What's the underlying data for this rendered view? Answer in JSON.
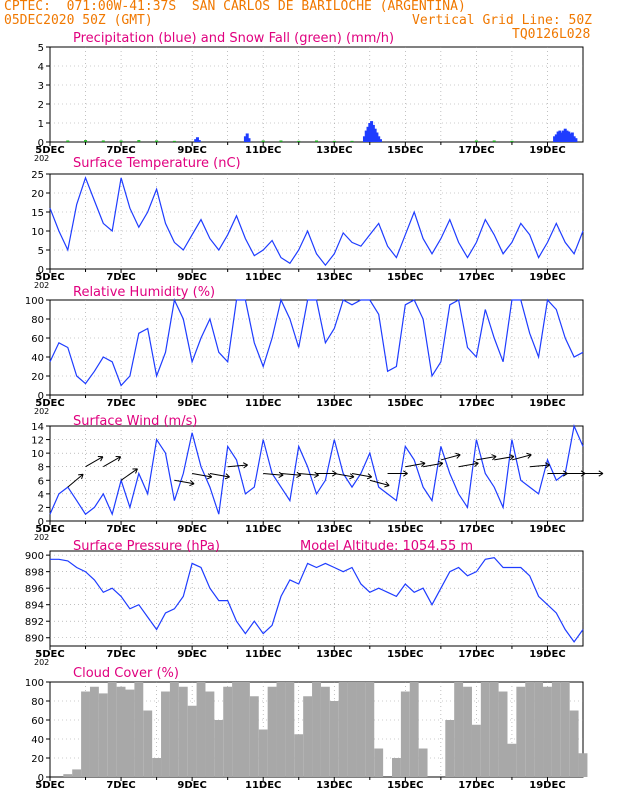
{
  "header": {
    "line1": "CPTEC:  071:00W-41:37S  SAN CARLOS DE BARILOCHE (ARGENTINA)",
    "line2_left": "05DEC2020 50Z (GMT)",
    "line2_right": "Vertical Grid Line: 50Z",
    "line3_right": "TQ0126L028"
  },
  "colors": {
    "header": "#f07800",
    "title": "#e0007f",
    "series": "#1e3cff",
    "snow": "#22aa22",
    "cloud": "#a8a8a8",
    "grid": "#999999"
  },
  "x_axis": {
    "day_labels": [
      "5DEC",
      "7DEC",
      "9DEC",
      "11DEC",
      "13DEC",
      "15DEC",
      "17DEC",
      "19DEC"
    ],
    "year_stub": "202",
    "start_day": 5,
    "end_day": 20
  },
  "chart_data": [
    {
      "type": "bar",
      "title": "Precipitation (blue) and Snow Fall (green) (mm/h)",
      "ylim": [
        0,
        5
      ],
      "yticks": [
        "0",
        "1",
        "2",
        "3",
        "4",
        "5"
      ],
      "series": [
        {
          "name": "Precipitation",
          "color": "#1e3cff",
          "x": [
            9.1,
            9.15,
            9.2,
            10.5,
            10.55,
            10.6,
            13.85,
            13.9,
            13.95,
            14.0,
            14.05,
            14.1,
            14.15,
            14.2,
            14.25,
            14.3,
            19.2,
            19.25,
            19.3,
            19.35,
            19.4,
            19.45,
            19.5,
            19.55,
            19.6,
            19.65,
            19.7,
            19.75,
            19.8
          ],
          "values": [
            0.15,
            0.25,
            0.1,
            0.3,
            0.45,
            0.2,
            0.3,
            0.6,
            0.8,
            1.0,
            1.1,
            0.9,
            0.7,
            0.5,
            0.3,
            0.15,
            0.3,
            0.4,
            0.55,
            0.6,
            0.5,
            0.6,
            0.7,
            0.6,
            0.55,
            0.45,
            0.5,
            0.3,
            0.2
          ]
        },
        {
          "name": "Snow Fall",
          "color": "#22aa22",
          "x": [
            5.5,
            6.0,
            6.5,
            7.0,
            7.5,
            8.0,
            8.5,
            11.0,
            11.5,
            12.0,
            12.5,
            13.0,
            13.5,
            17.0,
            17.5,
            18.0
          ],
          "values": [
            0.08,
            0.1,
            0.08,
            0.08,
            0.1,
            0.08,
            0.06,
            0.08,
            0.08,
            0.06,
            0.08,
            0.06,
            0.06,
            0.08,
            0.08,
            0.06
          ]
        }
      ]
    },
    {
      "type": "line",
      "title": "Surface Temperature (nC)",
      "ylim": [
        0,
        25
      ],
      "yticks": [
        "0",
        "5",
        "10",
        "15",
        "20",
        "25"
      ],
      "x": [
        5.0,
        5.25,
        5.5,
        5.75,
        6.0,
        6.25,
        6.5,
        6.75,
        7.0,
        7.25,
        7.5,
        7.75,
        8.0,
        8.25,
        8.5,
        8.75,
        9.0,
        9.25,
        9.5,
        9.75,
        10.0,
        10.25,
        10.5,
        10.75,
        11.0,
        11.25,
        11.5,
        11.75,
        12.0,
        12.25,
        12.5,
        12.75,
        13.0,
        13.25,
        13.5,
        13.75,
        14.0,
        14.25,
        14.5,
        14.75,
        15.0,
        15.25,
        15.5,
        15.75,
        16.0,
        16.25,
        16.5,
        16.75,
        17.0,
        17.25,
        17.5,
        17.75,
        18.0,
        18.25,
        18.5,
        18.75,
        19.0,
        19.25,
        19.5,
        19.75,
        20.0
      ],
      "values": [
        16,
        10,
        5,
        17,
        24,
        18,
        12,
        10,
        24,
        16,
        11,
        15,
        21,
        12,
        7,
        5,
        9,
        13,
        8,
        5,
        9,
        14,
        8,
        3.5,
        5,
        7.5,
        3,
        1.5,
        5,
        10,
        4,
        1,
        4,
        9.5,
        7,
        6,
        9,
        12,
        6,
        3,
        9,
        15,
        8,
        4,
        8,
        13,
        7,
        3,
        7,
        13,
        9,
        4,
        7,
        12,
        9,
        3,
        7,
        12,
        7,
        4,
        10
      ]
    },
    {
      "type": "line",
      "title": "Relative Humidity (%)",
      "ylim": [
        0,
        100
      ],
      "yticks": [
        "0",
        "20",
        "40",
        "60",
        "80",
        "100"
      ],
      "x": [
        5.0,
        5.25,
        5.5,
        5.75,
        6.0,
        6.25,
        6.5,
        6.75,
        7.0,
        7.25,
        7.5,
        7.75,
        8.0,
        8.25,
        8.5,
        8.75,
        9.0,
        9.25,
        9.5,
        9.75,
        10.0,
        10.25,
        10.5,
        10.75,
        11.0,
        11.25,
        11.5,
        11.75,
        12.0,
        12.25,
        12.5,
        12.75,
        13.0,
        13.25,
        13.5,
        13.75,
        14.0,
        14.25,
        14.5,
        14.75,
        15.0,
        15.25,
        15.5,
        15.75,
        16.0,
        16.25,
        16.5,
        16.75,
        17.0,
        17.25,
        17.5,
        17.75,
        18.0,
        18.25,
        18.5,
        18.75,
        19.0,
        19.25,
        19.5,
        19.75,
        20.0
      ],
      "values": [
        35,
        55,
        50,
        20,
        12,
        25,
        40,
        35,
        10,
        20,
        65,
        70,
        20,
        45,
        100,
        80,
        35,
        60,
        80,
        45,
        35,
        100,
        100,
        55,
        30,
        60,
        100,
        80,
        50,
        100,
        100,
        55,
        70,
        100,
        95,
        100,
        100,
        85,
        25,
        30,
        95,
        100,
        80,
        20,
        35,
        95,
        100,
        50,
        40,
        90,
        60,
        35,
        100,
        100,
        65,
        40,
        100,
        90,
        60,
        40,
        45
      ]
    },
    {
      "type": "line",
      "title": "Surface Wind (m/s)",
      "ylim": [
        0,
        14
      ],
      "yticks": [
        "0",
        "2",
        "4",
        "6",
        "8",
        "10",
        "12",
        "14"
      ],
      "x": [
        5.0,
        5.25,
        5.5,
        5.75,
        6.0,
        6.25,
        6.5,
        6.75,
        7.0,
        7.25,
        7.5,
        7.75,
        8.0,
        8.25,
        8.5,
        8.75,
        9.0,
        9.25,
        9.5,
        9.75,
        10.0,
        10.25,
        10.5,
        10.75,
        11.0,
        11.25,
        11.5,
        11.75,
        12.0,
        12.25,
        12.5,
        12.75,
        13.0,
        13.25,
        13.5,
        13.75,
        14.0,
        14.25,
        14.5,
        14.75,
        15.0,
        15.25,
        15.5,
        15.75,
        16.0,
        16.25,
        16.5,
        16.75,
        17.0,
        17.25,
        17.5,
        17.75,
        18.0,
        18.25,
        18.5,
        18.75,
        19.0,
        19.25,
        19.5,
        19.75,
        20.0
      ],
      "values": [
        1,
        4,
        5,
        3,
        1,
        2,
        4,
        1,
        6,
        2,
        7,
        4,
        12,
        10,
        3,
        7,
        13,
        8,
        5,
        1,
        11,
        9,
        4,
        5,
        12,
        7,
        5,
        3,
        11,
        8,
        4,
        6,
        12,
        7,
        5,
        7,
        10,
        5,
        4,
        3,
        11,
        9,
        5,
        3,
        11,
        7,
        4,
        2,
        12,
        7,
        5,
        2,
        12,
        6,
        5,
        4,
        9,
        6,
        7,
        14,
        11
      ]
    },
    {
      "type": "line",
      "title": "Surface Pressure (hPa)",
      "annotation": "Model Altitude: 1054.55  m",
      "ylim": [
        889,
        900.5
      ],
      "yticks": [
        "890",
        "892",
        "894",
        "896",
        "898",
        "900"
      ],
      "x": [
        5.0,
        5.25,
        5.5,
        5.75,
        6.0,
        6.25,
        6.5,
        6.75,
        7.0,
        7.25,
        7.5,
        7.75,
        8.0,
        8.25,
        8.5,
        8.75,
        9.0,
        9.25,
        9.5,
        9.75,
        10.0,
        10.25,
        10.5,
        10.75,
        11.0,
        11.25,
        11.5,
        11.75,
        12.0,
        12.25,
        12.5,
        12.75,
        13.0,
        13.25,
        13.5,
        13.75,
        14.0,
        14.25,
        14.5,
        14.75,
        15.0,
        15.25,
        15.5,
        15.75,
        16.0,
        16.25,
        16.5,
        16.75,
        17.0,
        17.25,
        17.5,
        17.75,
        18.0,
        18.25,
        18.5,
        18.75,
        19.0,
        19.25,
        19.5,
        19.75,
        20.0
      ],
      "values": [
        899.5,
        899.5,
        899.3,
        898.5,
        898,
        897,
        895.5,
        896,
        895,
        893.5,
        894,
        892.5,
        891,
        893,
        893.5,
        895,
        899,
        898.5,
        896,
        894.5,
        894.5,
        892,
        890.5,
        892,
        890.5,
        891.5,
        895,
        897,
        896.5,
        899,
        898.5,
        899,
        898.5,
        898,
        898.5,
        896.5,
        895.5,
        896,
        895.5,
        895,
        896.5,
        895.5,
        896,
        894,
        896,
        898,
        898.5,
        897.5,
        898,
        899.5,
        899.7,
        898.5,
        898.5,
        898.5,
        897.5,
        895,
        894,
        893,
        891,
        889.5,
        891
      ]
    },
    {
      "type": "bar",
      "title": "Cloud Cover (%)",
      "ylim": [
        0,
        100
      ],
      "yticks": [
        "0",
        "20",
        "40",
        "60",
        "80",
        "100"
      ],
      "x": [
        5.0,
        5.25,
        5.5,
        5.75,
        6.0,
        6.25,
        6.5,
        6.75,
        7.0,
        7.25,
        7.5,
        7.75,
        8.0,
        8.25,
        8.5,
        8.75,
        9.0,
        9.25,
        9.5,
        9.75,
        10.0,
        10.25,
        10.5,
        10.75,
        11.0,
        11.25,
        11.5,
        11.75,
        12.0,
        12.25,
        12.5,
        12.75,
        13.0,
        13.25,
        13.5,
        13.75,
        14.0,
        14.25,
        14.5,
        14.75,
        15.0,
        15.25,
        15.5,
        15.75,
        16.0,
        16.25,
        16.5,
        16.75,
        17.0,
        17.25,
        17.5,
        17.75,
        18.0,
        18.25,
        18.5,
        18.75,
        19.0,
        19.25,
        19.5,
        19.75,
        20.0
      ],
      "values": [
        0,
        0,
        3,
        8,
        90,
        95,
        88,
        100,
        95,
        92,
        100,
        70,
        20,
        90,
        100,
        95,
        75,
        100,
        90,
        60,
        95,
        100,
        100,
        85,
        50,
        95,
        100,
        100,
        45,
        85,
        100,
        95,
        80,
        100,
        100,
        100,
        100,
        30,
        0,
        20,
        90,
        100,
        30,
        0,
        0,
        60,
        100,
        95,
        55,
        100,
        100,
        90,
        35,
        95,
        100,
        100,
        95,
        100,
        100,
        70,
        25
      ]
    }
  ],
  "wind_barbs": {
    "x": [
      5.5,
      6.0,
      6.5,
      7.0,
      8.5,
      9.0,
      9.5,
      10.0,
      11.0,
      11.5,
      12.0,
      12.5,
      13.0,
      13.5,
      14.0,
      14.5,
      15.0,
      15.5,
      16.0,
      16.5,
      17.0,
      17.5,
      18.0,
      18.5,
      19.0,
      19.5,
      20.0
    ],
    "speed": [
      5,
      8,
      8,
      6,
      6,
      7,
      7,
      8,
      7,
      7,
      7,
      7,
      7,
      7,
      6,
      7,
      8,
      8,
      9,
      8,
      9,
      9,
      9,
      8,
      7,
      7,
      7
    ],
    "dir_deg": [
      40,
      30,
      30,
      35,
      -10,
      -10,
      -10,
      5,
      -5,
      -5,
      -5,
      0,
      -10,
      -10,
      -15,
      0,
      10,
      10,
      15,
      10,
      10,
      10,
      15,
      5,
      0,
      0,
      0
    ]
  }
}
